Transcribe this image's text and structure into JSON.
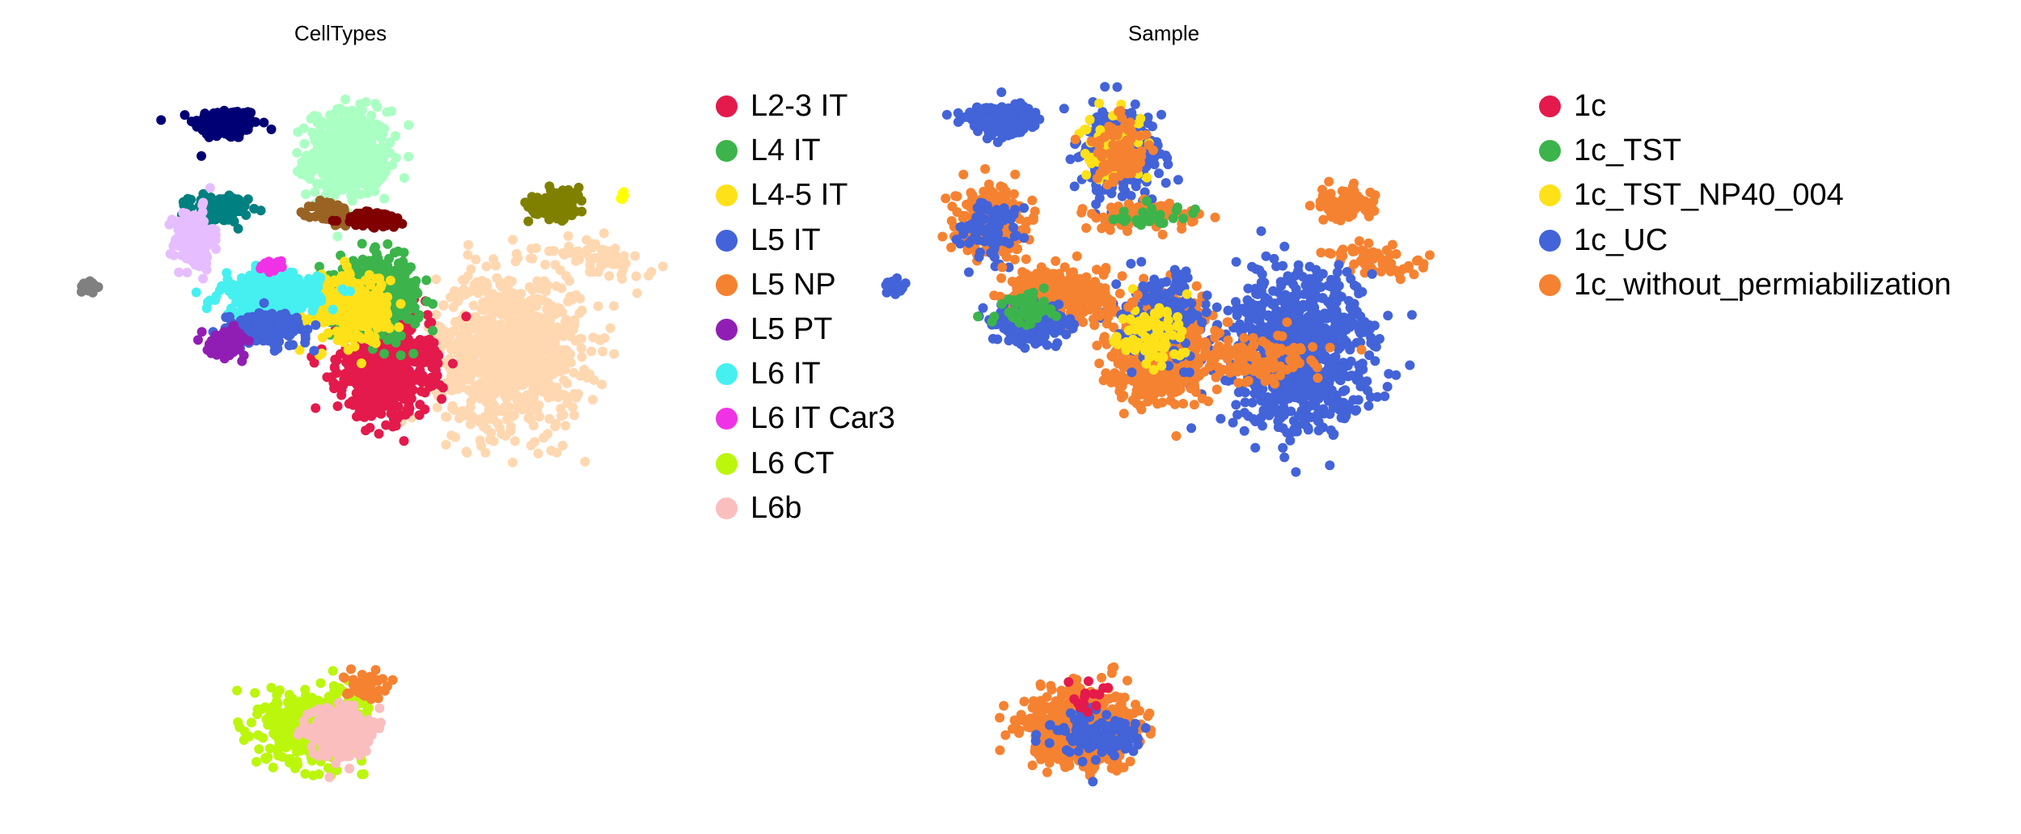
{
  "panels": [
    {
      "title": "CellTypes",
      "legend": [
        {
          "label": "L2-3 IT",
          "color": "#e31a4b"
        },
        {
          "label": "L4 IT",
          "color": "#3cb44b"
        },
        {
          "label": "L4-5 IT",
          "color": "#ffe119"
        },
        {
          "label": "L5 IT",
          "color": "#4363d8"
        },
        {
          "label": "L5 NP",
          "color": "#f58231"
        },
        {
          "label": "L5 PT",
          "color": "#911eb4"
        },
        {
          "label": "L6 IT",
          "color": "#46f0f0"
        },
        {
          "label": "L6 IT Car3",
          "color": "#f032e6"
        },
        {
          "label": "L6 CT",
          "color": "#bcf60c"
        },
        {
          "label": "L6b",
          "color": "#fabebe"
        }
      ]
    },
    {
      "title": "Sample",
      "legend": [
        {
          "label": "1c",
          "color": "#e31a4b"
        },
        {
          "label": "1c_TST",
          "color": "#3cb44b"
        },
        {
          "label": "1c_TST_NP40_004",
          "color": "#ffe119"
        },
        {
          "label": "1c_UC",
          "color": "#4363d8"
        },
        {
          "label": "1c_without_permiabilization",
          "color": "#f58231"
        }
      ]
    }
  ],
  "chart_data": [
    {
      "type": "scatter",
      "title": "CellTypes",
      "xlabel": "",
      "ylabel": "",
      "grid": false,
      "axes_visible": false,
      "legend_position": "right",
      "marker_size": 6,
      "extra_colors": {
        "teal": "#008080",
        "navy": "#000075",
        "brown": "#9a6324",
        "maroon": "#800000",
        "lavender": "#e6beff",
        "gray": "#808080",
        "olive": "#808000",
        "apricot": "#ffd8b1",
        "yellow": "#ffff00"
      },
      "clusters": [
        {
          "name": "navy",
          "color": "#000075",
          "cx": 0.21,
          "cy": 0.85,
          "sx": 0.02,
          "sy": 0.018,
          "n": 180
        },
        {
          "name": "mint",
          "color": "#aaffc3",
          "cx": 0.36,
          "cy": 0.78,
          "sx": 0.025,
          "sy": 0.05,
          "n": 450
        },
        {
          "name": "teal",
          "color": "#008080",
          "cx": 0.2,
          "cy": 0.65,
          "sx": 0.018,
          "sy": 0.015,
          "n": 150
        },
        {
          "name": "lavender",
          "color": "#e6beff",
          "cx": 0.17,
          "cy": 0.58,
          "sx": 0.012,
          "sy": 0.035,
          "n": 160
        },
        {
          "name": "gray",
          "color": "#808080",
          "cx": 0.04,
          "cy": 0.47,
          "sx": 0.005,
          "sy": 0.008,
          "n": 25
        },
        {
          "name": "brown",
          "color": "#9a6324",
          "cx": 0.34,
          "cy": 0.64,
          "sx": 0.012,
          "sy": 0.015,
          "n": 60
        },
        {
          "name": "maroon",
          "color": "#800000",
          "cx": 0.395,
          "cy": 0.625,
          "sx": 0.02,
          "sy": 0.01,
          "n": 80
        },
        {
          "name": "olive",
          "color": "#808000",
          "cx": 0.62,
          "cy": 0.665,
          "sx": 0.018,
          "sy": 0.018,
          "n": 100
        },
        {
          "name": "yellow-dot",
          "color": "#ffff00",
          "cx": 0.7,
          "cy": 0.685,
          "sx": 0.003,
          "sy": 0.005,
          "n": 8
        },
        {
          "name": "apricot-arm",
          "color": "#ffd8b1",
          "cx": 0.67,
          "cy": 0.535,
          "sx": 0.018,
          "sy": 0.035,
          "n": 60,
          "tilt": 1.2
        },
        {
          "name": "apricot",
          "color": "#ffd8b1",
          "cx": 0.56,
          "cy": 0.32,
          "sx": 0.045,
          "sy": 0.09,
          "n": 900
        },
        {
          "name": "L2-3 IT",
          "color": "#e31a4b",
          "cx": 0.405,
          "cy": 0.28,
          "sx": 0.028,
          "sy": 0.055,
          "n": 700
        },
        {
          "name": "L4 IT",
          "color": "#3cb44b",
          "cx": 0.4,
          "cy": 0.45,
          "sx": 0.025,
          "sy": 0.04,
          "n": 500
        },
        {
          "name": "L4-5 IT",
          "color": "#ffe119",
          "cx": 0.36,
          "cy": 0.42,
          "sx": 0.025,
          "sy": 0.04,
          "n": 300
        },
        {
          "name": "L6 IT",
          "color": "#46f0f0",
          "cx": 0.265,
          "cy": 0.45,
          "sx": 0.03,
          "sy": 0.025,
          "n": 400
        },
        {
          "name": "L5 IT",
          "color": "#4363d8",
          "cx": 0.26,
          "cy": 0.37,
          "sx": 0.025,
          "sy": 0.02,
          "n": 180
        },
        {
          "name": "L5 PT",
          "color": "#911eb4",
          "cx": 0.21,
          "cy": 0.34,
          "sx": 0.012,
          "sy": 0.015,
          "n": 90
        },
        {
          "name": "L6 IT Car3",
          "color": "#f032e6",
          "cx": 0.27,
          "cy": 0.52,
          "sx": 0.008,
          "sy": 0.006,
          "n": 30
        },
        {
          "name": "L6 CT",
          "color": "#bcf60c",
          "cx": 0.32,
          "cy": -0.56,
          "sx": 0.03,
          "sy": 0.04,
          "n": 600
        },
        {
          "name": "L6b",
          "color": "#fabebe",
          "cx": 0.35,
          "cy": -0.57,
          "sx": 0.018,
          "sy": 0.03,
          "n": 250
        },
        {
          "name": "L5 NP",
          "color": "#f58231",
          "cx": 0.38,
          "cy": -0.46,
          "sx": 0.012,
          "sy": 0.015,
          "n": 60
        }
      ]
    },
    {
      "type": "scatter",
      "title": "Sample",
      "xlabel": "",
      "ylabel": "",
      "grid": false,
      "axes_visible": false,
      "legend_position": "right",
      "marker_size": 6,
      "clusters": [
        {
          "name": "1c_UC-a",
          "color": "#4363d8",
          "cx": 0.13,
          "cy": 0.86,
          "sx": 0.02,
          "sy": 0.018,
          "n": 180
        },
        {
          "name": "1c_UC-b",
          "color": "#4363d8",
          "cx": 0.28,
          "cy": 0.78,
          "sx": 0.025,
          "sy": 0.05,
          "n": 350
        },
        {
          "name": "1c_TST_NP40_004-b",
          "color": "#ffe119",
          "cx": 0.27,
          "cy": 0.8,
          "sx": 0.02,
          "sy": 0.04,
          "n": 80
        },
        {
          "name": "1c_without_permiabilization-b",
          "color": "#f58231",
          "cx": 0.28,
          "cy": 0.78,
          "sx": 0.02,
          "sy": 0.04,
          "n": 100
        },
        {
          "name": "1c_without_permiabilization-c",
          "color": "#f58231",
          "cx": 0.12,
          "cy": 0.62,
          "sx": 0.02,
          "sy": 0.04,
          "n": 250
        },
        {
          "name": "1c_UC-c",
          "color": "#4363d8",
          "cx": 0.12,
          "cy": 0.6,
          "sx": 0.02,
          "sy": 0.04,
          "n": 80
        },
        {
          "name": "1c_UC-d",
          "color": "#4363d8",
          "cx": 0.0,
          "cy": 0.47,
          "sx": 0.005,
          "sy": 0.008,
          "n": 25
        },
        {
          "name": "1c_without_permiabilization-d",
          "color": "#f58231",
          "cx": 0.31,
          "cy": 0.635,
          "sx": 0.03,
          "sy": 0.014,
          "n": 120
        },
        {
          "name": "1c_TST-d",
          "color": "#3cb44b",
          "cx": 0.32,
          "cy": 0.63,
          "sx": 0.03,
          "sy": 0.012,
          "n": 30
        },
        {
          "name": "1c_without_permiabilization-e",
          "color": "#f58231",
          "cx": 0.56,
          "cy": 0.665,
          "sx": 0.018,
          "sy": 0.018,
          "n": 100
        },
        {
          "name": "1c_without_permiabilization-f",
          "color": "#f58231",
          "cx": 0.6,
          "cy": 0.535,
          "sx": 0.018,
          "sy": 0.035,
          "n": 60,
          "tilt": 1.2
        },
        {
          "name": "1c_UC-g",
          "color": "#4363d8",
          "cx": 0.5,
          "cy": 0.32,
          "sx": 0.045,
          "sy": 0.09,
          "n": 900
        },
        {
          "name": "1c_without_permiabilization-g",
          "color": "#f58231",
          "cx": 0.45,
          "cy": 0.3,
          "sx": 0.035,
          "sy": 0.03,
          "n": 120
        },
        {
          "name": "1c_without_permiabilization-h",
          "color": "#f58231",
          "cx": 0.33,
          "cy": 0.32,
          "sx": 0.028,
          "sy": 0.06,
          "n": 700
        },
        {
          "name": "1c_UC-h",
          "color": "#4363d8",
          "cx": 0.33,
          "cy": 0.4,
          "sx": 0.025,
          "sy": 0.05,
          "n": 200
        },
        {
          "name": "1c_TST_NP40_004-h",
          "color": "#ffe119",
          "cx": 0.32,
          "cy": 0.35,
          "sx": 0.02,
          "sy": 0.04,
          "n": 80
        },
        {
          "name": "1c_without_permiabilization-i",
          "color": "#f58231",
          "cx": 0.2,
          "cy": 0.45,
          "sx": 0.03,
          "sy": 0.03,
          "n": 400
        },
        {
          "name": "1c_UC-i",
          "color": "#4363d8",
          "cx": 0.17,
          "cy": 0.38,
          "sx": 0.025,
          "sy": 0.025,
          "n": 180
        },
        {
          "name": "1c_TST-i",
          "color": "#3cb44b",
          "cx": 0.16,
          "cy": 0.42,
          "sx": 0.02,
          "sy": 0.02,
          "n": 50
        },
        {
          "name": "1c_without_permiabilization-j",
          "color": "#f58231",
          "cx": 0.23,
          "cy": -0.56,
          "sx": 0.03,
          "sy": 0.04,
          "n": 800
        },
        {
          "name": "1c_UC-j",
          "color": "#4363d8",
          "cx": 0.25,
          "cy": -0.58,
          "sx": 0.03,
          "sy": 0.03,
          "n": 120
        },
        {
          "name": "1c-j",
          "color": "#e31a4b",
          "cx": 0.25,
          "cy": -0.5,
          "sx": 0.02,
          "sy": 0.02,
          "n": 15
        }
      ]
    }
  ]
}
